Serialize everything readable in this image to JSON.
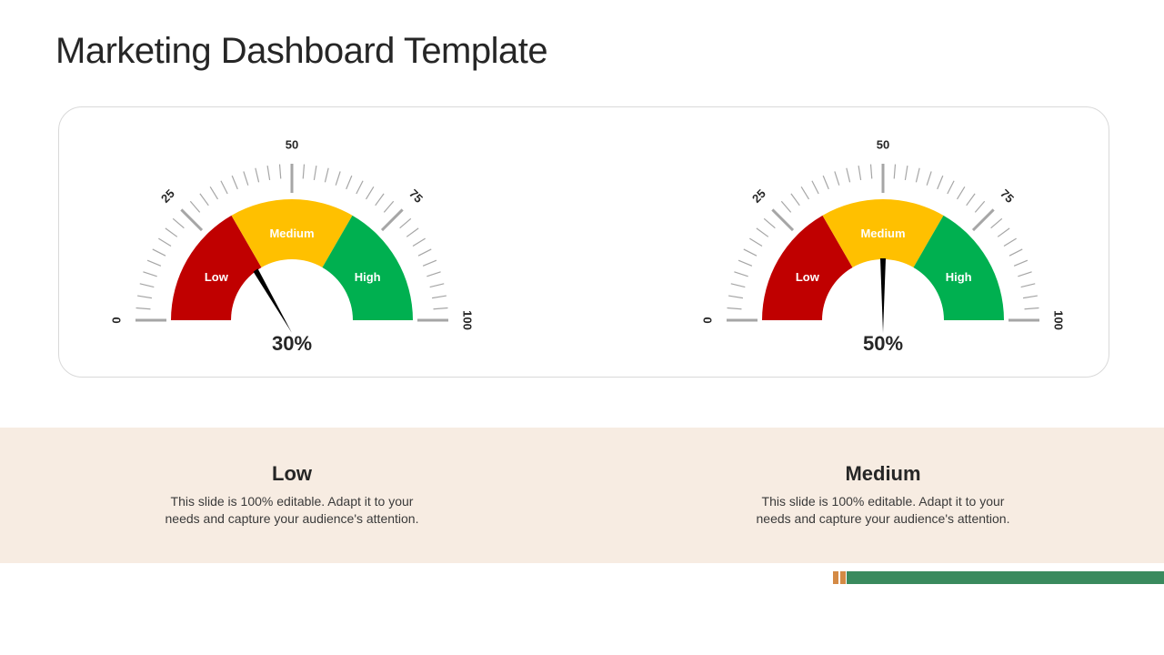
{
  "title": "Marketing Dashboard Template",
  "gauges": [
    {
      "value_label": "30%",
      "value": 30,
      "tick_labels": [
        "0",
        "25",
        "50",
        "75",
        "100"
      ],
      "bands": [
        {
          "label": "Low",
          "color": "#c00000"
        },
        {
          "label": "Medium",
          "color": "#ffc000"
        },
        {
          "label": "High",
          "color": "#00b050"
        }
      ]
    },
    {
      "value_label": "50%",
      "value": 50,
      "tick_labels": [
        "0",
        "25",
        "50",
        "75",
        "100"
      ],
      "bands": [
        {
          "label": "Low",
          "color": "#c00000"
        },
        {
          "label": "Medium",
          "color": "#ffc000"
        },
        {
          "label": "High",
          "color": "#00b050"
        }
      ]
    }
  ],
  "descriptions": [
    {
      "heading": "Low",
      "text": "This slide is 100% editable. Adapt it to your needs and capture your audience's attention."
    },
    {
      "heading": "Medium",
      "text": "This slide is 100% editable. Adapt it to your needs and capture your audience's attention."
    }
  ],
  "colors": {
    "panel_border": "#d9d9d9",
    "band_background": "#f7ece2",
    "accent_orange": "#d48a45",
    "accent_green": "#3a8a5e",
    "tick": "#a6a6a6"
  }
}
